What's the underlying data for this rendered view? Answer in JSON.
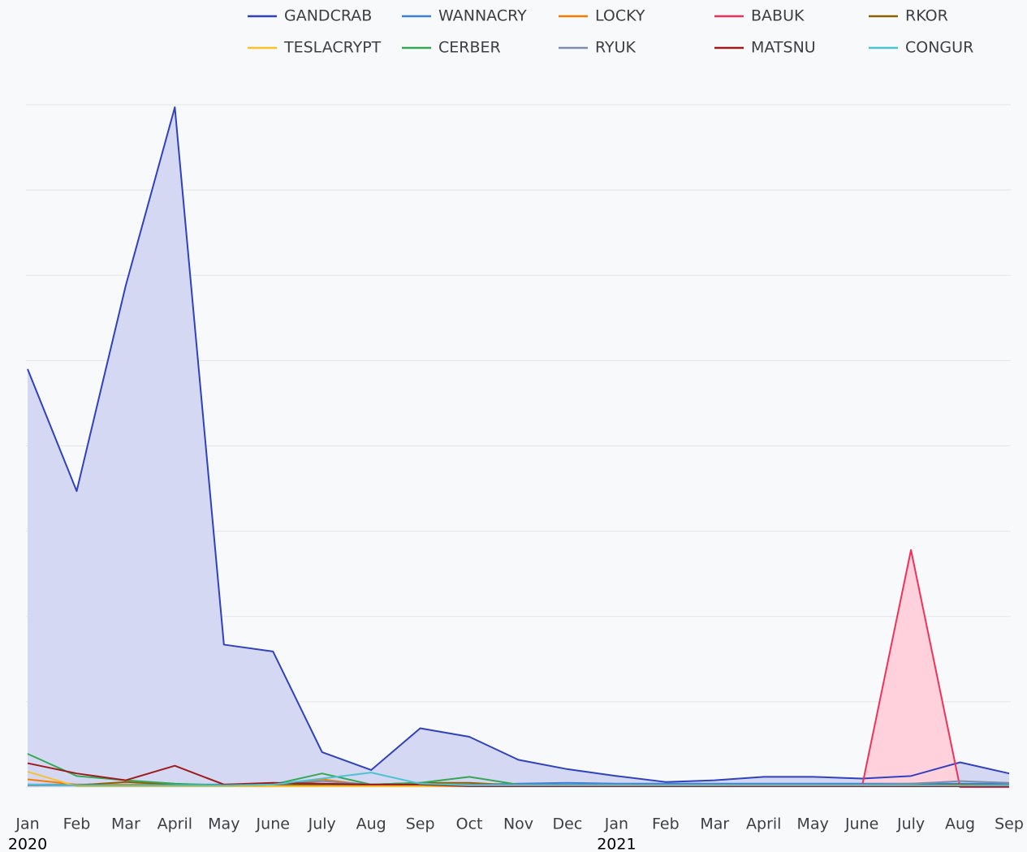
{
  "chart_data": {
    "type": "line",
    "categories": [
      "Jan",
      "Feb",
      "Mar",
      "April",
      "May",
      "June",
      "July",
      "Aug",
      "Sep",
      "Oct",
      "Nov",
      "Dec",
      "Jan",
      "Feb",
      "Mar",
      "April",
      "May",
      "June",
      "July",
      "Aug",
      "Sep"
    ],
    "years": [
      {
        "label": "2020",
        "start": 0
      },
      {
        "label": "2021",
        "start": 12
      }
    ],
    "ylim": [
      0,
      8
    ],
    "yticks": [
      0,
      1,
      2,
      3,
      4,
      5,
      6,
      7,
      8
    ],
    "grid": true,
    "legend": "top",
    "series": [
      {
        "name": "GANDCRAB",
        "color": "#3041c0",
        "area": true,
        "fill": "#d5d8f3",
        "values": [
          4.9,
          3.47,
          5.88,
          7.97,
          1.67,
          1.59,
          0.41,
          0.2,
          0.69,
          0.59,
          0.32,
          0.21,
          0.13,
          0.06,
          0.08,
          0.12,
          0.12,
          0.1,
          0.13,
          0.29,
          0.16
        ]
      },
      {
        "name": "WANNACRY",
        "color": "#3b7fd9",
        "values": [
          0.03,
          0.03,
          0.03,
          0.03,
          0.03,
          0.03,
          0.03,
          0.03,
          0.03,
          0.03,
          0.04,
          0.05,
          0.04,
          0.04,
          0.04,
          0.04,
          0.04,
          0.04,
          0.04,
          0.04,
          0.04
        ]
      },
      {
        "name": "LOCKY",
        "color": "#f57c00",
        "values": [
          0.09,
          0.03,
          0.03,
          0.02,
          0.02,
          0.03,
          0.09,
          0.02,
          0.02,
          0.02,
          0.03,
          0.02,
          0.02,
          0.02,
          0.02,
          0.02,
          0.02,
          0.02,
          0.02,
          0.02,
          0.02
        ]
      },
      {
        "name": "BABUK",
        "color": "#f0325a",
        "area": true,
        "fill": "#ffd1dc",
        "values": [
          null,
          null,
          null,
          null,
          null,
          null,
          null,
          null,
          null,
          null,
          null,
          null,
          null,
          null,
          null,
          null,
          null,
          0,
          2.78,
          0,
          0
        ]
      },
      {
        "name": "RKOR",
        "color": "#8d6200",
        "values": [
          0.02,
          0.02,
          0.06,
          0.03,
          0.02,
          0.03,
          0.03,
          0.03,
          0.05,
          0.05,
          0.02,
          0.02,
          0.02,
          0.02,
          0.02,
          0.02,
          0.02,
          0.02,
          0.02,
          0.03,
          0.02
        ]
      },
      {
        "name": "TESLACRYPT",
        "color": "#fbc02d",
        "values": [
          0.18,
          0.01,
          0.01,
          0.01,
          0.01,
          0.01,
          0.01,
          0.01,
          0.01,
          0.01,
          0.01,
          0.01,
          0.01,
          0.01,
          0.01,
          0.01,
          0.01,
          0.01,
          0.01,
          0.01,
          0.01
        ]
      },
      {
        "name": "CERBER",
        "color": "#34a853",
        "values": [
          0.39,
          0.13,
          0.08,
          0.04,
          0.02,
          0.03,
          0.16,
          0.03,
          0.05,
          0.12,
          0.03,
          0.02,
          0.02,
          0.02,
          0.02,
          0.02,
          0.02,
          0.02,
          0.02,
          0.02,
          0.02
        ]
      },
      {
        "name": "RYUK",
        "color": "#7c8ea8",
        "values": [
          0.02,
          0.02,
          0.02,
          0.02,
          0.02,
          0.03,
          0.07,
          0.03,
          0.03,
          0.03,
          0.03,
          0.03,
          0.03,
          0.03,
          0.03,
          0.03,
          0.03,
          0.03,
          0.04,
          0.07,
          0.05
        ]
      },
      {
        "name": "MATSNU",
        "color": "#9e1b1b",
        "values": [
          0.28,
          0.16,
          0.08,
          0.25,
          0.03,
          0.05,
          0.04,
          0.03,
          0.03,
          0.01,
          0.01,
          0.01,
          0.01,
          0.01,
          0.01,
          0.01,
          0.01,
          0.01,
          0.01,
          0.01,
          0.01
        ]
      },
      {
        "name": "CONGUR",
        "color": "#4ec3cf",
        "values": [
          0.03,
          0.02,
          0.02,
          0.02,
          0.02,
          0.03,
          0.1,
          0.17,
          0.04,
          0.02,
          0.02,
          0.02,
          0.02,
          0.02,
          0.02,
          0.02,
          0.02,
          0.02,
          0.02,
          0.02,
          0.02
        ]
      }
    ]
  }
}
